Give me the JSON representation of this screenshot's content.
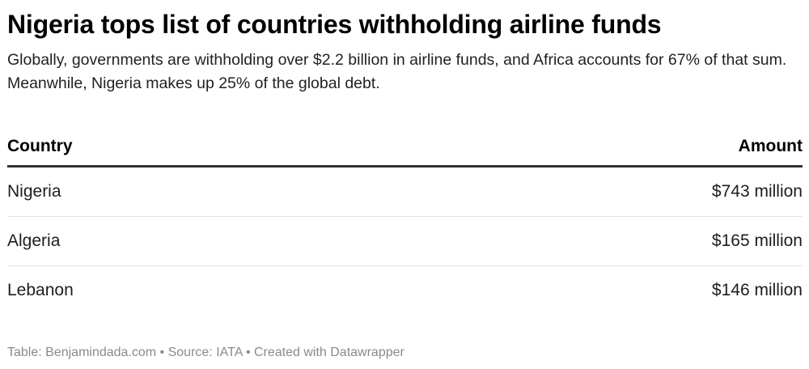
{
  "header": {
    "title": "Nigeria tops list of countries withholding airline funds",
    "subtitle": "Globally, governments are withholding over $2.2 billion in airline funds, and Africa accounts for 67% of that sum. Meanwhile, Nigeria makes up 25% of the global debt."
  },
  "table": {
    "columns": [
      "Country",
      "Amount"
    ],
    "rows": [
      {
        "country": "Nigeria",
        "amount": "$743 million"
      },
      {
        "country": "Algeria",
        "amount": "$165 million"
      },
      {
        "country": "Lebanon",
        "amount": "$146 million"
      }
    ]
  },
  "footer": {
    "text": "Table: Benjamindada.com • Source: IATA • Created with Datawrapper"
  },
  "chart_data": {
    "type": "table",
    "title": "Nigeria tops list of countries withholding airline funds",
    "subtitle": "Globally, governments are withholding over $2.2 billion in airline funds, and Africa accounts for 67% of that sum. Meanwhile, Nigeria makes up 25% of the global debt.",
    "columns": [
      "Country",
      "Amount"
    ],
    "categories": [
      "Nigeria",
      "Algeria",
      "Lebanon"
    ],
    "values": [
      743,
      165,
      146
    ],
    "unit": "million USD"
  }
}
